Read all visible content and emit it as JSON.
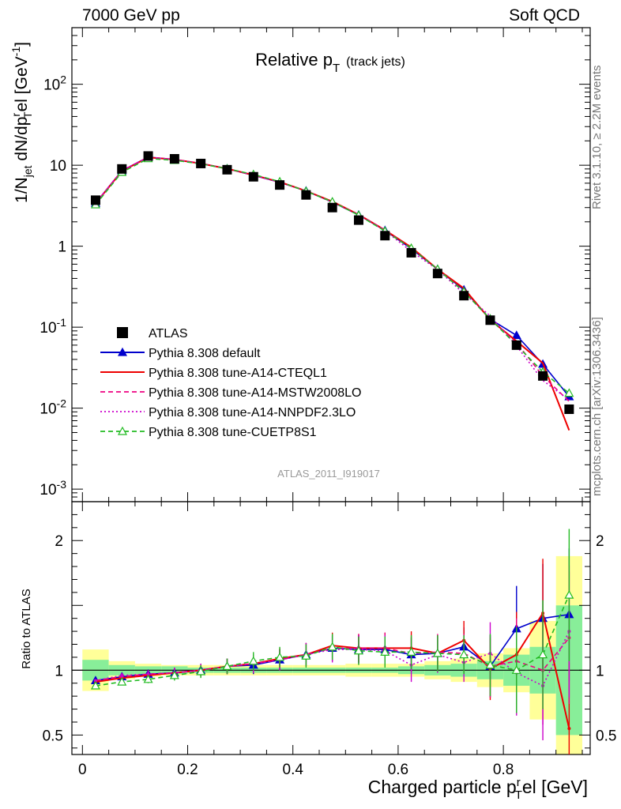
{
  "header": {
    "left": "7000 GeV pp",
    "right": "Soft QCD"
  },
  "side": {
    "rivet": "Rivet 3.1.10, ≥ 2.2M events",
    "mcplots": "mcplots.cern.ch [arXiv:1306.3436]"
  },
  "chart_data": {
    "type": "line",
    "title": "Relative p_T (track jets)",
    "title_main": "Relative p",
    "title_sub": "T",
    "title_tail": "(track jets)",
    "analysis_label": "ATLAS_2011_I919017",
    "ylabel": "1/N_jet dN/dp_T^rel [GeV^-1]",
    "ratio_ylabel": "Ratio to ATLAS",
    "xlabel": "Charged particle p_T^rel [GeV]",
    "xlim": [
      -0.02,
      0.965
    ],
    "ylim_main": [
      0.0007,
      500
    ],
    "ylim_ratio": [
      0.35,
      2.3
    ],
    "y_log": true,
    "x_ticks": [
      "0",
      "0.2",
      "0.4",
      "0.6",
      "0.8"
    ],
    "y_ticks_main": [
      "10^2",
      "10",
      "1",
      "10^-1",
      "10^-2",
      "10^-3"
    ],
    "y_ticks_ratio": [
      "0.5",
      "1",
      "2"
    ],
    "legend_position": "middle-left",
    "x": [
      0.025,
      0.075,
      0.125,
      0.175,
      0.225,
      0.275,
      0.325,
      0.375,
      0.425,
      0.475,
      0.525,
      0.575,
      0.625,
      0.675,
      0.725,
      0.775,
      0.825,
      0.875,
      0.925
    ],
    "x_edges": [
      0.0,
      0.05,
      0.1,
      0.15,
      0.2,
      0.25,
      0.3,
      0.35,
      0.4,
      0.45,
      0.5,
      0.55,
      0.6,
      0.65,
      0.7,
      0.75,
      0.8,
      0.85,
      0.9,
      0.95
    ],
    "data": {
      "name": "ATLAS",
      "values": [
        3.7,
        9.0,
        13.0,
        12.0,
        10.5,
        8.8,
        7.2,
        5.7,
        4.3,
        3.0,
        2.1,
        1.35,
        0.83,
        0.46,
        0.245,
        0.122,
        0.06,
        0.025,
        0.0097
      ],
      "band_stat": [
        0.08,
        0.04,
        0.03,
        0.03,
        0.02,
        0.02,
        0.02,
        0.02,
        0.02,
        0.02,
        0.02,
        0.02,
        0.03,
        0.04,
        0.05,
        0.07,
        0.12,
        0.18,
        0.5
      ],
      "band_total": [
        0.16,
        0.07,
        0.05,
        0.04,
        0.04,
        0.04,
        0.04,
        0.04,
        0.04,
        0.04,
        0.05,
        0.05,
        0.05,
        0.07,
        0.09,
        0.13,
        0.17,
        0.38,
        0.88
      ]
    },
    "series": [
      {
        "name": "Pythia 8.308 default",
        "color": "#0000cc",
        "dash": "",
        "marker": "triangle-filled",
        "ratio": [
          0.92,
          0.95,
          0.97,
          0.98,
          1.0,
          1.03,
          1.04,
          1.08,
          1.12,
          1.17,
          1.16,
          1.16,
          1.12,
          1.13,
          1.18,
          1.03,
          1.32,
          1.4,
          1.43
        ]
      },
      {
        "name": "Pythia 8.308 tune-A14-CTEQL1",
        "color": "#ee0000",
        "dash": "",
        "marker": "none",
        "ratio": [
          0.91,
          0.94,
          0.96,
          0.98,
          1.0,
          1.03,
          1.05,
          1.09,
          1.12,
          1.19,
          1.17,
          1.17,
          1.17,
          1.13,
          1.23,
          1.01,
          1.12,
          1.44,
          0.55
        ]
      },
      {
        "name": "Pythia 8.308 tune-A14-MSTW2008LO",
        "color": "#ee0080",
        "dash": "6,4",
        "marker": "none",
        "ratio": [
          0.92,
          0.95,
          0.97,
          0.98,
          1.0,
          1.03,
          1.05,
          1.08,
          1.12,
          1.17,
          1.17,
          1.17,
          1.13,
          1.14,
          1.13,
          1.03,
          1.07,
          1.0,
          1.25
        ]
      },
      {
        "name": "Pythia 8.308 tune-A14-NNPDF2.3LO",
        "color": "#cc00cc",
        "dash": "2,3",
        "marker": "none",
        "ratio": [
          0.92,
          0.96,
          0.97,
          0.98,
          1.0,
          1.03,
          1.05,
          1.08,
          1.12,
          1.16,
          1.16,
          1.15,
          1.04,
          1.12,
          1.06,
          1.13,
          0.98,
          0.88,
          1.3
        ]
      },
      {
        "name": "Pythia 8.308 tune-CUETP8S1",
        "color": "#22bb22",
        "dash": "6,4",
        "marker": "triangle-open",
        "ratio": [
          0.88,
          0.91,
          0.93,
          0.96,
          0.99,
          1.03,
          1.07,
          1.1,
          1.11,
          1.18,
          1.15,
          1.14,
          1.14,
          1.13,
          1.12,
          1.04,
          1.0,
          1.12,
          1.58
        ]
      }
    ]
  }
}
